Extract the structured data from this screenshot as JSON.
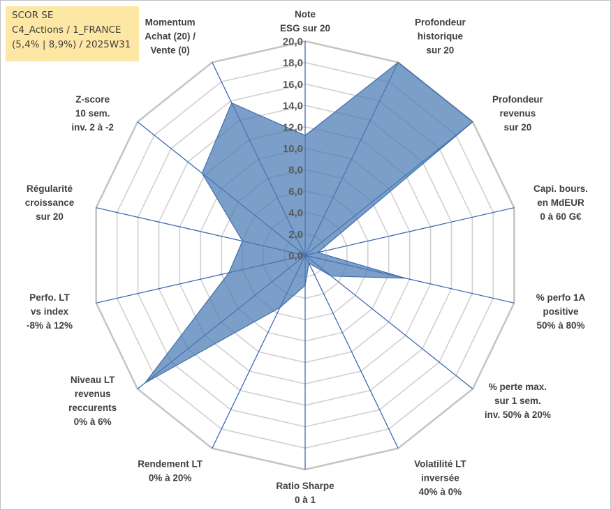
{
  "info_box": {
    "lines": [
      "SCOR SE",
      "C4_Actions / 1_FRANCE",
      "(5,4% | 8,9%) / 2025W31"
    ]
  },
  "colors": {
    "fill": "#4a7ab4",
    "stroke": "#3f6fa8",
    "spoke": "#2f5fad",
    "grid": "#d0d0d0",
    "info_bg": "#fde7a5"
  },
  "chart_data": {
    "type": "radar",
    "title": "",
    "rmin": 0,
    "rmax": 20,
    "ticks": [
      "0,0",
      "2,0",
      "4,0",
      "6,0",
      "8,0",
      "10,0",
      "12,0",
      "14,0",
      "16,0",
      "18,0",
      "20,0"
    ],
    "axes": [
      {
        "label": [
          "Note",
          "ESG sur 20"
        ],
        "value": 11.2
      },
      {
        "label": [
          "Profondeur",
          "historique",
          "sur 20"
        ],
        "value": 20
      },
      {
        "label": [
          "Profondeur",
          "revenus",
          "sur 20"
        ],
        "value": 20
      },
      {
        "label": [
          "Capi. bours.",
          "en MdEUR",
          "0 à 60 G€"
        ],
        "value": 1.2
      },
      {
        "label": [
          "% perfo 1A",
          "positive",
          "50% à 80%"
        ],
        "value": 9.6
      },
      {
        "label": [
          "% perte max.",
          "sur 1 sem.",
          "inv. 50% à 20%"
        ],
        "value": 3.1
      },
      {
        "label": [
          "Volatilité LT",
          "inversée",
          "40% à 0%"
        ],
        "value": 0.8
      },
      {
        "label": [
          "Ratio Sharpe",
          "0 à 1"
        ],
        "value": 2.8
      },
      {
        "label": [
          "Rendement LT",
          "0% à 20%"
        ],
        "value": 5.4
      },
      {
        "label": [
          "Niveau LT",
          "revenus",
          "reccurents",
          "0% à 6%"
        ],
        "value": 19.1
      },
      {
        "label": [
          "Perfo. LT",
          "vs index",
          "-8% à 12%"
        ],
        "value": 7.3
      },
      {
        "label": [
          "Régularité",
          "croissance",
          "sur 20"
        ],
        "value": 6.0
      },
      {
        "label": [
          "Z-score",
          "10 sem.",
          "inv. 2 à -2"
        ],
        "value": 12.3
      },
      {
        "label": [
          "Momentum",
          "Achat (20) /",
          "Vente (0)"
        ],
        "value": 15.8
      }
    ]
  }
}
